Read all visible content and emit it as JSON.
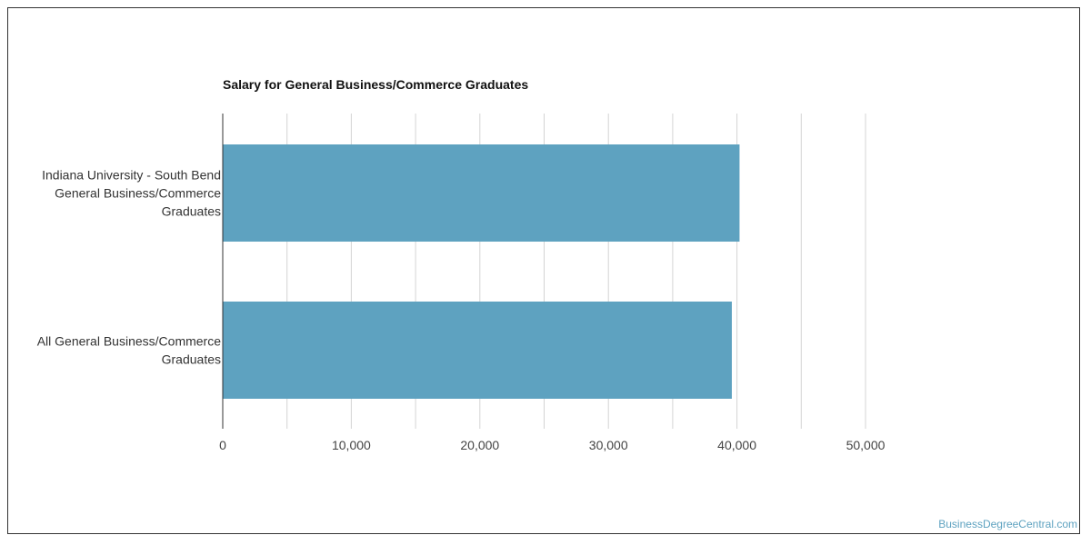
{
  "chart_data": {
    "type": "bar",
    "orientation": "horizontal",
    "title": "Salary for General Business/Commerce Graduates",
    "categories": [
      [
        "Indiana University - South Bend",
        "General Business/Commerce",
        "Graduates"
      ],
      [
        "All General Business/Commerce",
        "Graduates"
      ]
    ],
    "values": [
      40200,
      39600
    ],
    "xlim": [
      0,
      60000
    ],
    "ticks": [
      "0",
      "10,000",
      "20,000",
      "30,000",
      "40,000",
      "50,000"
    ],
    "tick_values": [
      0,
      10000,
      20000,
      30000,
      40000,
      50000
    ],
    "gridlines": [
      5000,
      10000,
      15000,
      20000,
      25000,
      30000,
      35000,
      40000,
      45000,
      50000
    ],
    "grid": true,
    "bar_color": "#5ea2c0"
  },
  "watermark": "BusinessDegreeCentral.com"
}
